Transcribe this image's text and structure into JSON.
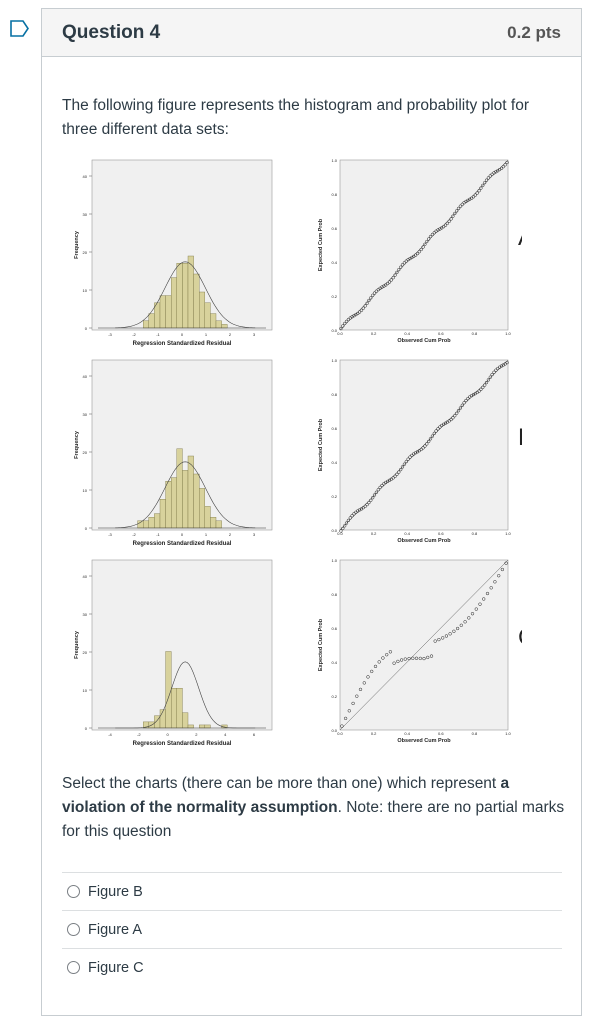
{
  "question": {
    "title": "Question 4",
    "points": "0.2 pts",
    "intro": "The following figure represents the histogram and probability plot for three different data sets:",
    "prompt_before": "Select the charts (there can be more than one) which represent ",
    "prompt_bold_a": "a",
    "prompt_bold_b": "violation of the normality assumption",
    "prompt_after": ". Note: there are no partial marks for this question"
  },
  "figure": {
    "rows": [
      {
        "label": "A",
        "histogram": {
          "ylabel": "Frequency",
          "xlabel": "Regression Standardized Residual",
          "yticks": [
            "0",
            "10",
            "20",
            "30",
            "40"
          ],
          "xticks": [
            "-3",
            "-2",
            "-1",
            "0",
            "1",
            "2",
            "3"
          ]
        },
        "pplot": {
          "ylabel": "Expected Cum Prob",
          "xlabel": "Observed Cum Prob",
          "ticks": [
            "0.0",
            "0.2",
            "0.4",
            "0.6",
            "0.8",
            "1.0"
          ]
        }
      },
      {
        "label": "B",
        "histogram": {
          "ylabel": "Frequency",
          "xlabel": "Regression Standardized Residual",
          "yticks": [
            "0",
            "10",
            "20",
            "30",
            "40"
          ],
          "xticks": [
            "-3",
            "-2",
            "-1",
            "0",
            "1",
            "2",
            "3"
          ]
        },
        "pplot": {
          "ylabel": "Expected Cum Prob",
          "xlabel": "Observed Cum Prob",
          "ticks": [
            "0.0",
            "0.2",
            "0.4",
            "0.6",
            "0.8",
            "1.0"
          ]
        }
      },
      {
        "label": "C",
        "histogram": {
          "ylabel": "Frequency",
          "xlabel": "Regression Standardized Residual",
          "yticks": [
            "0",
            "10",
            "20",
            "30",
            "40"
          ],
          "xticks": [
            "-4",
            "-2",
            "0",
            "2",
            "4",
            "6"
          ]
        },
        "pplot": {
          "ylabel": "Expected Cum Prob",
          "xlabel": "Observed Cum Prob",
          "ticks": [
            "0.0",
            "0.2",
            "0.4",
            "0.6",
            "0.8",
            "1.0"
          ]
        }
      }
    ]
  },
  "answers": [
    {
      "label": "Figure B"
    },
    {
      "label": "Figure A"
    },
    {
      "label": "Figure C"
    }
  ],
  "colors": {
    "bar_fill": "#d8d29c",
    "bar_stroke": "#7a7444",
    "panel_bg": "#f0f0f0",
    "header_bg": "#f5f5f5"
  }
}
